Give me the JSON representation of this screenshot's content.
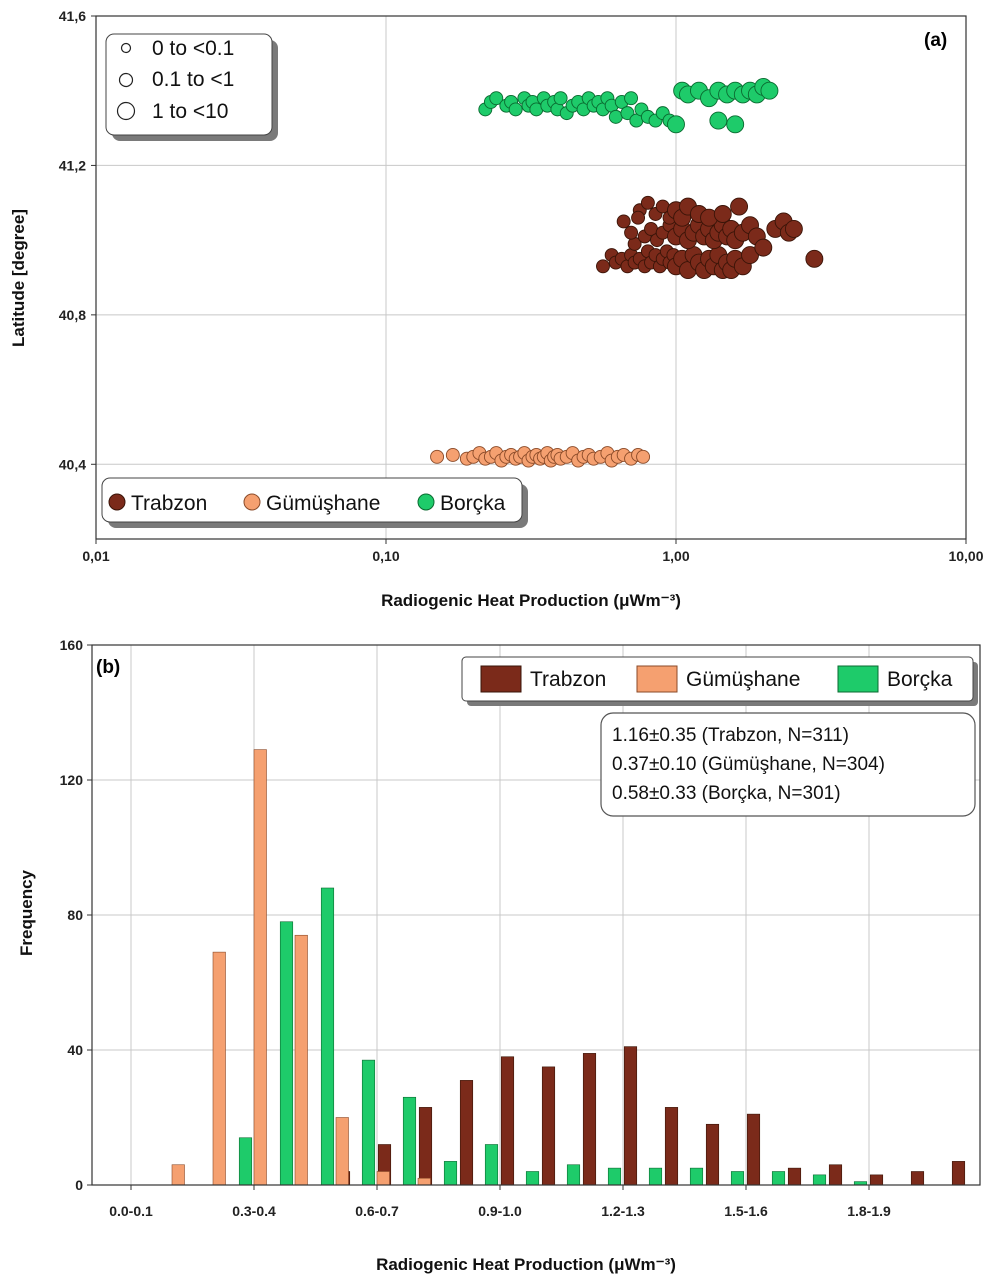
{
  "colors": {
    "trabzon": "#7b2a1a",
    "gumushane": "#f5a070",
    "borcka": "#1ecb6a",
    "grid": "#c8c8c8"
  },
  "chart_data": [
    {
      "type": "scatter",
      "panel_label": "(a)",
      "xlabel": "Radiogenic Heat Production (μWm⁻³)",
      "ylabel": "Latitude [degree]",
      "xscale": "log",
      "xlim": [
        0.01,
        10
      ],
      "ylim": [
        40.2,
        41.6
      ],
      "xticks": [
        0.01,
        0.1,
        1,
        10
      ],
      "xtick_labels": [
        "0,01",
        "0,10",
        "1,00",
        "10,00"
      ],
      "yticks": [
        40.4,
        40.8,
        41.2,
        41.6
      ],
      "ytick_labels": [
        "40,4",
        "40,8",
        "41,2",
        "41,6"
      ],
      "grid": true,
      "size_legend": {
        "placement": "top-left",
        "entries": [
          "0 to <0.1",
          "0.1 to <1",
          "1 to <10"
        ]
      },
      "series_legend": {
        "placement": "bottom-left",
        "entries": [
          "Trabzon",
          "Gümüşhane",
          "Borçka"
        ]
      },
      "series": [
        {
          "name": "Trabzon",
          "points": [
            [
              0.56,
              40.93
            ],
            [
              0.6,
              40.96
            ],
            [
              0.62,
              40.94
            ],
            [
              0.65,
              40.95
            ],
            [
              0.68,
              40.93
            ],
            [
              0.7,
              40.96
            ],
            [
              0.72,
              40.94
            ],
            [
              0.75,
              40.95
            ],
            [
              0.78,
              40.93
            ],
            [
              0.8,
              40.97
            ],
            [
              0.82,
              40.94
            ],
            [
              0.85,
              40.96
            ],
            [
              0.88,
              40.93
            ],
            [
              0.9,
              40.95
            ],
            [
              0.93,
              40.97
            ],
            [
              0.95,
              40.94
            ],
            [
              0.98,
              40.96
            ],
            [
              1.0,
              40.93
            ],
            [
              1.05,
              40.95
            ],
            [
              1.1,
              40.92
            ],
            [
              1.15,
              40.96
            ],
            [
              1.2,
              40.94
            ],
            [
              1.25,
              40.92
            ],
            [
              1.3,
              40.95
            ],
            [
              1.35,
              40.93
            ],
            [
              1.4,
              40.96
            ],
            [
              1.45,
              40.92
            ],
            [
              1.5,
              40.94
            ],
            [
              1.55,
              40.92
            ],
            [
              1.6,
              40.95
            ],
            [
              1.7,
              40.93
            ],
            [
              1.8,
              40.96
            ],
            [
              0.72,
              40.99
            ],
            [
              0.78,
              41.01
            ],
            [
              0.82,
              41.03
            ],
            [
              0.86,
              41.0
            ],
            [
              0.9,
              41.02
            ],
            [
              0.95,
              41.04
            ],
            [
              1.0,
              41.01
            ],
            [
              1.05,
              41.03
            ],
            [
              1.1,
              41.0
            ],
            [
              1.15,
              41.02
            ],
            [
              1.2,
              41.04
            ],
            [
              1.25,
              41.01
            ],
            [
              1.3,
              41.03
            ],
            [
              1.35,
              41.0
            ],
            [
              1.4,
              41.02
            ],
            [
              1.45,
              41.04
            ],
            [
              1.5,
              41.01
            ],
            [
              1.55,
              41.03
            ],
            [
              1.6,
              41.0
            ],
            [
              1.7,
              41.02
            ],
            [
              1.8,
              41.04
            ],
            [
              1.9,
              41.01
            ],
            [
              2.0,
              40.98
            ],
            [
              0.75,
              41.08
            ],
            [
              0.8,
              41.1
            ],
            [
              0.85,
              41.07
            ],
            [
              0.9,
              41.09
            ],
            [
              0.95,
              41.06
            ],
            [
              1.0,
              41.08
            ],
            [
              1.05,
              41.06
            ],
            [
              1.1,
              41.09
            ],
            [
              1.2,
              41.07
            ],
            [
              1.3,
              41.06
            ],
            [
              1.45,
              41.07
            ],
            [
              1.65,
              41.09
            ],
            [
              0.66,
              41.05
            ],
            [
              0.7,
              41.02
            ],
            [
              0.74,
              41.06
            ],
            [
              2.2,
              41.03
            ],
            [
              2.35,
              41.05
            ],
            [
              2.45,
              41.02
            ],
            [
              2.55,
              41.03
            ],
            [
              3.0,
              40.95
            ]
          ]
        },
        {
          "name": "Gümüşhane",
          "points": [
            [
              0.15,
              40.42
            ],
            [
              0.17,
              40.425
            ],
            [
              0.19,
              40.415
            ],
            [
              0.2,
              40.42
            ],
            [
              0.21,
              40.43
            ],
            [
              0.22,
              40.415
            ],
            [
              0.23,
              40.42
            ],
            [
              0.24,
              40.43
            ],
            [
              0.25,
              40.41
            ],
            [
              0.26,
              40.42
            ],
            [
              0.27,
              40.425
            ],
            [
              0.28,
              40.415
            ],
            [
              0.29,
              40.42
            ],
            [
              0.3,
              40.43
            ],
            [
              0.31,
              40.41
            ],
            [
              0.32,
              40.42
            ],
            [
              0.33,
              40.425
            ],
            [
              0.34,
              40.415
            ],
            [
              0.35,
              40.42
            ],
            [
              0.36,
              40.43
            ],
            [
              0.37,
              40.41
            ],
            [
              0.38,
              40.42
            ],
            [
              0.39,
              40.425
            ],
            [
              0.4,
              40.415
            ],
            [
              0.42,
              40.42
            ],
            [
              0.44,
              40.43
            ],
            [
              0.46,
              40.41
            ],
            [
              0.48,
              40.42
            ],
            [
              0.5,
              40.425
            ],
            [
              0.52,
              40.415
            ],
            [
              0.55,
              40.42
            ],
            [
              0.58,
              40.43
            ],
            [
              0.6,
              40.41
            ],
            [
              0.63,
              40.42
            ],
            [
              0.66,
              40.425
            ],
            [
              0.7,
              40.415
            ],
            [
              0.74,
              40.425
            ],
            [
              0.77,
              40.42
            ]
          ]
        },
        {
          "name": "Borçka",
          "points": [
            [
              0.22,
              41.35
            ],
            [
              0.23,
              41.37
            ],
            [
              0.24,
              41.38
            ],
            [
              0.26,
              41.36
            ],
            [
              0.27,
              41.37
            ],
            [
              0.28,
              41.35
            ],
            [
              0.3,
              41.38
            ],
            [
              0.31,
              41.36
            ],
            [
              0.32,
              41.37
            ],
            [
              0.33,
              41.35
            ],
            [
              0.35,
              41.38
            ],
            [
              0.36,
              41.36
            ],
            [
              0.38,
              41.37
            ],
            [
              0.39,
              41.35
            ],
            [
              0.4,
              41.38
            ],
            [
              0.42,
              41.34
            ],
            [
              0.44,
              41.36
            ],
            [
              0.46,
              41.37
            ],
            [
              0.48,
              41.35
            ],
            [
              0.5,
              41.38
            ],
            [
              0.52,
              41.36
            ],
            [
              0.54,
              41.37
            ],
            [
              0.56,
              41.35
            ],
            [
              0.58,
              41.38
            ],
            [
              0.6,
              41.36
            ],
            [
              0.62,
              41.33
            ],
            [
              0.65,
              41.37
            ],
            [
              0.68,
              41.34
            ],
            [
              0.7,
              41.38
            ],
            [
              0.73,
              41.32
            ],
            [
              0.76,
              41.35
            ],
            [
              0.8,
              41.33
            ],
            [
              0.85,
              41.32
            ],
            [
              0.9,
              41.34
            ],
            [
              0.95,
              41.32
            ],
            [
              1.0,
              41.31
            ],
            [
              1.05,
              41.4
            ],
            [
              1.1,
              41.39
            ],
            [
              1.2,
              41.4
            ],
            [
              1.3,
              41.38
            ],
            [
              1.4,
              41.4
            ],
            [
              1.5,
              41.39
            ],
            [
              1.6,
              41.4
            ],
            [
              1.7,
              41.39
            ],
            [
              1.8,
              41.4
            ],
            [
              1.9,
              41.39
            ],
            [
              2.0,
              41.41
            ],
            [
              2.1,
              41.4
            ],
            [
              1.4,
              41.32
            ],
            [
              1.6,
              41.31
            ]
          ]
        }
      ]
    },
    {
      "type": "bar",
      "panel_label": "(b)",
      "xlabel": "Radiogenic Heat Production (μWm⁻³)",
      "ylabel": "Frequency",
      "ylim": [
        0,
        160
      ],
      "yticks": [
        0,
        40,
        80,
        120,
        160
      ],
      "grid": true,
      "categories": [
        "0.0-0.1",
        "0.1-0.2",
        "0.2-0.3",
        "0.3-0.4",
        "0.4-0.5",
        "0.5-0.6",
        "0.6-0.7",
        "0.7-0.8",
        "0.8-0.9",
        "0.9-1.0",
        "1.0-1.1",
        "1.1-1.2",
        "1.2-1.3",
        "1.3-1.4",
        "1.4-1.5",
        "1.5-1.6",
        "1.6-1.7",
        "1.7-1.8",
        "1.8-1.9",
        "1.9-2.0",
        "2.0-2.1",
        "2.1-2.2"
      ],
      "shown_tick_labels": [
        "0.0-0.1",
        "0.3-0.4",
        "0.6-0.7",
        "0.9-1.0",
        "1.2-1.3",
        "1.5-1.6",
        "1.8-1.9"
      ],
      "legend": {
        "placement": "top-right",
        "entries": [
          "Trabzon",
          "Gümüşhane",
          "Borçka"
        ]
      },
      "stats_box": [
        "1.16±0.35 (Trabzon, N=311)",
        "0.37±0.10 (Gümüşhane, N=304)",
        "0.58±0.33 (Borçka, N=301)"
      ],
      "series": [
        {
          "name": "Trabzon",
          "values": [
            0,
            0,
            0,
            0,
            0,
            4,
            12,
            23,
            31,
            38,
            35,
            39,
            41,
            23,
            18,
            21,
            5,
            6,
            3,
            4,
            7,
            0
          ]
        },
        {
          "name": "Gümüşhane",
          "values": [
            0,
            6,
            69,
            129,
            74,
            20,
            4,
            2,
            0,
            0,
            0,
            0,
            0,
            0,
            0,
            0,
            0,
            0,
            0,
            0,
            0,
            0
          ]
        },
        {
          "name": "Borçka",
          "values": [
            0,
            0,
            14,
            78,
            88,
            37,
            26,
            7,
            12,
            4,
            6,
            5,
            5,
            5,
            4,
            4,
            3,
            1,
            0,
            0,
            0,
            2
          ]
        }
      ]
    }
  ]
}
